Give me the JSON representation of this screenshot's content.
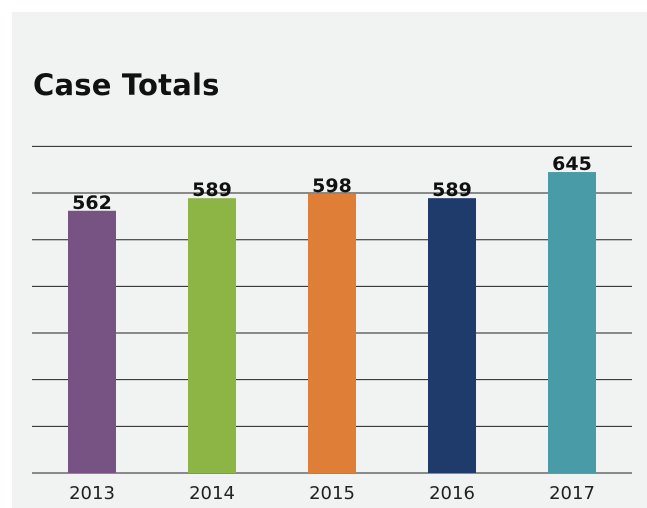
{
  "chart_data": {
    "type": "bar",
    "title": "Case Totals",
    "categories": [
      "2013",
      "2014",
      "2015",
      "2016",
      "2017"
    ],
    "values": [
      562,
      589,
      598,
      589,
      645
    ],
    "colors": [
      "#775383",
      "#8db546",
      "#de7e37",
      "#1f3b6c",
      "#4a9ba8"
    ],
    "ylim": [
      0,
      700
    ],
    "grid": true,
    "xlabel": "",
    "ylabel": ""
  }
}
